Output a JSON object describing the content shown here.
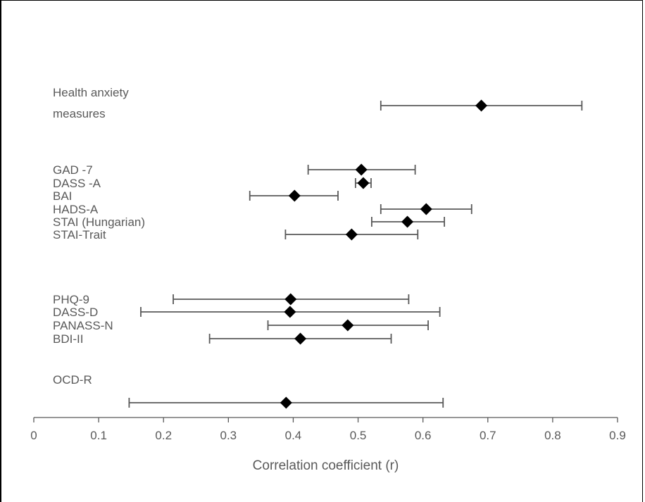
{
  "chart_data": {
    "type": "scatter",
    "variant": "forest-plot",
    "xlabel": "Correlation coefficient (r)",
    "xlim": [
      0,
      0.9
    ],
    "xticks": [
      0,
      0.1,
      0.2,
      0.3,
      0.4,
      0.5,
      0.6,
      0.7,
      0.8,
      0.9
    ],
    "xtick_labels": [
      "0",
      "0.1",
      "0.2",
      "0.3",
      "0.4",
      "0.5",
      "0.6",
      "0.7",
      "0.8",
      "0.9"
    ],
    "grid": false,
    "marker": "diamond",
    "colors": {
      "marker": "#000000",
      "errorbar": "#595959",
      "text": "#595959"
    },
    "groups": [
      {
        "label_lines": [
          "Health anxiety",
          "measures"
        ],
        "items": [
          {
            "label": "",
            "r": 0.69,
            "ci": [
              0.535,
              0.845
            ]
          }
        ]
      },
      {
        "label_lines": [],
        "items": [
          {
            "label": "GAD -7",
            "r": 0.505,
            "ci": [
              0.423,
              0.588
            ]
          },
          {
            "label": "DASS -A",
            "r": 0.508,
            "ci": [
              0.496,
              0.52
            ]
          },
          {
            "label": "BAI",
            "r": 0.402,
            "ci": [
              0.333,
              0.469
            ]
          },
          {
            "label": "HADS-A",
            "r": 0.605,
            "ci": [
              0.535,
              0.675
            ]
          },
          {
            "label": "STAI (Hungarian)",
            "r": 0.576,
            "ci": [
              0.521,
              0.633
            ]
          },
          {
            "label": "STAI-Trait",
            "r": 0.49,
            "ci": [
              0.388,
              0.592
            ]
          }
        ]
      },
      {
        "label_lines": [],
        "items": [
          {
            "label": "PHQ-9",
            "r": 0.396,
            "ci": [
              0.215,
              0.578
            ]
          },
          {
            "label": "DASS-D",
            "r": 0.395,
            "ci": [
              0.165,
              0.626
            ]
          },
          {
            "label": "PANASS-N",
            "r": 0.484,
            "ci": [
              0.361,
              0.608
            ]
          },
          {
            "label": "BDI-II",
            "r": 0.411,
            "ci": [
              0.271,
              0.551
            ]
          }
        ]
      },
      {
        "label_lines": [
          "OCD-R"
        ],
        "items": [
          {
            "label": "",
            "r": 0.389,
            "ci": [
              0.147,
              0.631
            ]
          }
        ]
      }
    ]
  }
}
